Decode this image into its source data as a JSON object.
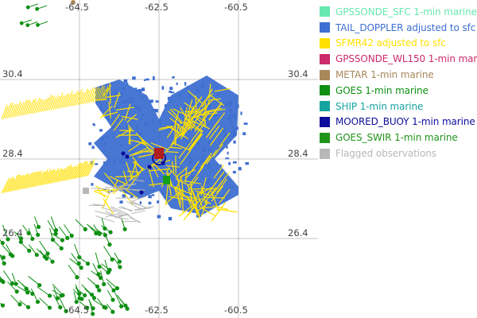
{
  "map": {
    "lon_ticks": [
      "-64.5",
      "-62.5",
      "-60.5"
    ],
    "lat_ticks": [
      "30.4",
      "28.4",
      "26.4",
      "26.4"
    ]
  },
  "legend": {
    "items": [
      {
        "label": "GPSSONDE_SFC 1-min marine",
        "color": "#66e8b0"
      },
      {
        "label": "TAIL_DOPPLER adjusted to sfc",
        "color": "#3e6fd1"
      },
      {
        "label": "SFMR42 adjusted to sfc",
        "color": "#ffe000"
      },
      {
        "label": "GPSSONDE_WL150 1-min mar",
        "color": "#cc2a6a"
      },
      {
        "label": "METAR 1-min marine",
        "color": "#a8885a"
      },
      {
        "label": "GOES 1-min marine",
        "color": "#0f8f14"
      },
      {
        "label": "SHIP 1-min marine",
        "color": "#16a3a0"
      },
      {
        "label": "MOORED_BUOY 1-min marine",
        "color": "#0d0d9c"
      },
      {
        "label": "GOES_SWIR 1-min marine",
        "color": "#20941a"
      },
      {
        "label": "Flagged observations",
        "color": "#b8b8b8"
      }
    ]
  }
}
